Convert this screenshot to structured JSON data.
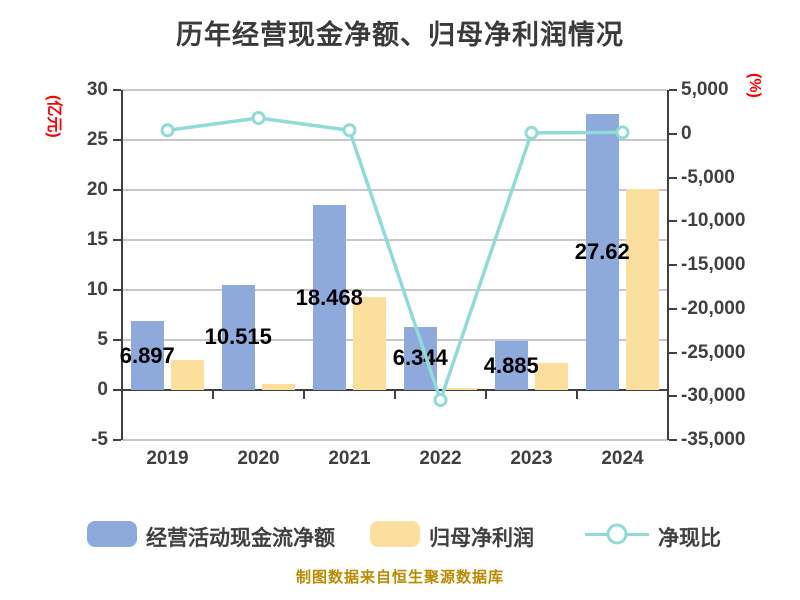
{
  "title": "历年经营现金净额、归母净利润情况",
  "footer": "制图数据来自恒生聚源数据库",
  "colors": {
    "background": "#FFFFFF",
    "title_text": "#3A3A3A",
    "axis": "#404040",
    "grid": "#C8C8C8",
    "bar_cash": "#8EA9DB",
    "bar_profit": "#FBDF9D",
    "line": "#8EDCD5",
    "marker_fill": "#FFFFFF",
    "unit_red": "#FF0000",
    "footer_text": "#BA8B00",
    "data_label": "#000000"
  },
  "chart_data": {
    "type": "bar+line combo, dual y-axis",
    "title": "历年经营现金净额、归母净利润情况",
    "categories": [
      "2019",
      "2020",
      "2021",
      "2022",
      "2023",
      "2024"
    ],
    "series": [
      {
        "name": "经营活动现金流净额",
        "type": "bar",
        "axis": "left",
        "values": [
          6.897,
          10.515,
          18.468,
          6.344,
          4.885,
          27.62
        ],
        "labels": [
          "6.897",
          "10.515",
          "18.468",
          "6.344",
          "4.885",
          "27.62"
        ]
      },
      {
        "name": "归母净利润",
        "type": "bar",
        "axis": "left",
        "values": [
          3.0,
          0.6,
          9.3,
          0.1,
          2.7,
          20.1
        ]
      },
      {
        "name": "净现比",
        "type": "line",
        "axis": "right",
        "values": [
          400,
          1800,
          400,
          -30430,
          100,
          150
        ]
      }
    ],
    "left_axis": {
      "unit": "(亿元)",
      "ticks": [
        30,
        25,
        20,
        15,
        10,
        5,
        0,
        -5
      ],
      "max": 30,
      "min": -5
    },
    "right_axis": {
      "unit": "(%)",
      "ticks": [
        5000,
        0,
        -5000,
        -10000,
        -15000,
        -20000,
        -25000,
        -30000,
        -35000
      ],
      "max": 5000,
      "min": -35000
    },
    "grid": true,
    "legend_position": "bottom"
  }
}
